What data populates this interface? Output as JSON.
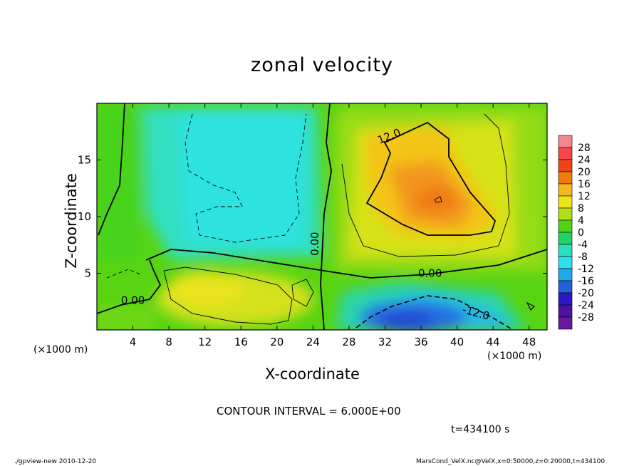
{
  "chart_data": {
    "type": "heatmap",
    "title": "zonal velocity",
    "xlabel": "X-coordinate",
    "ylabel": "Z-coordinate",
    "x_unit_left": "(×1000 m)",
    "x_unit_right": "(×1000 m)",
    "xlim": [
      0,
      50
    ],
    "ylim": [
      0,
      20
    ],
    "x_ticks": [
      4,
      8,
      12,
      16,
      20,
      24,
      28,
      32,
      36,
      40,
      44,
      48
    ],
    "y_ticks": [
      5,
      10,
      15
    ],
    "colorbar": {
      "levels": [
        28,
        24,
        20,
        16,
        12,
        8,
        4,
        0,
        -4,
        -8,
        -12,
        -16,
        -20,
        -24,
        -28
      ],
      "colors": [
        "#f4868c",
        "#f7474b",
        "#f2421a",
        "#f27b0e",
        "#f5b81c",
        "#eee515",
        "#b3e015",
        "#50d314",
        "#1fd364",
        "#29e0bd",
        "#2de0ed",
        "#21a8ec",
        "#2460d8",
        "#2a17c8",
        "#4d10a0",
        "#6a189c"
      ]
    },
    "contours": [
      {
        "label": "12.0",
        "x": 32.6,
        "z": 16.8,
        "style": "solid"
      },
      {
        "label": "0.00",
        "x": 24.6,
        "z": 7.6,
        "style": "solid",
        "rotated": true
      },
      {
        "label": "0.00",
        "x": 37.0,
        "z": 4.7,
        "style": "solid"
      },
      {
        "label": "0.00",
        "x": 4.0,
        "z": 2.3,
        "style": "solid"
      },
      {
        "label": "-12.0",
        "x": 42.0,
        "z": 1.2,
        "style": "dashed"
      }
    ],
    "regions": [
      {
        "description": "max",
        "x": 38,
        "z": 11.5,
        "value": 16
      },
      {
        "description": "min",
        "x": 35,
        "z": 1.2,
        "value": -18
      },
      {
        "description": "cyan upper-middle",
        "x": 17,
        "z": 12,
        "value": -8
      },
      {
        "description": "yellow lower-left",
        "x": 15,
        "z": 3,
        "value": 7
      }
    ]
  },
  "annotations": {
    "contour_interval": "CONTOUR INTERVAL = 6.000E+00",
    "time": "t=434100 s",
    "footer_left": "./gpview-new  2010-12-20",
    "footer_right": "MarsCond_VelX.nc@VelX,x=0:50000,z=0:20000,t=434100"
  }
}
